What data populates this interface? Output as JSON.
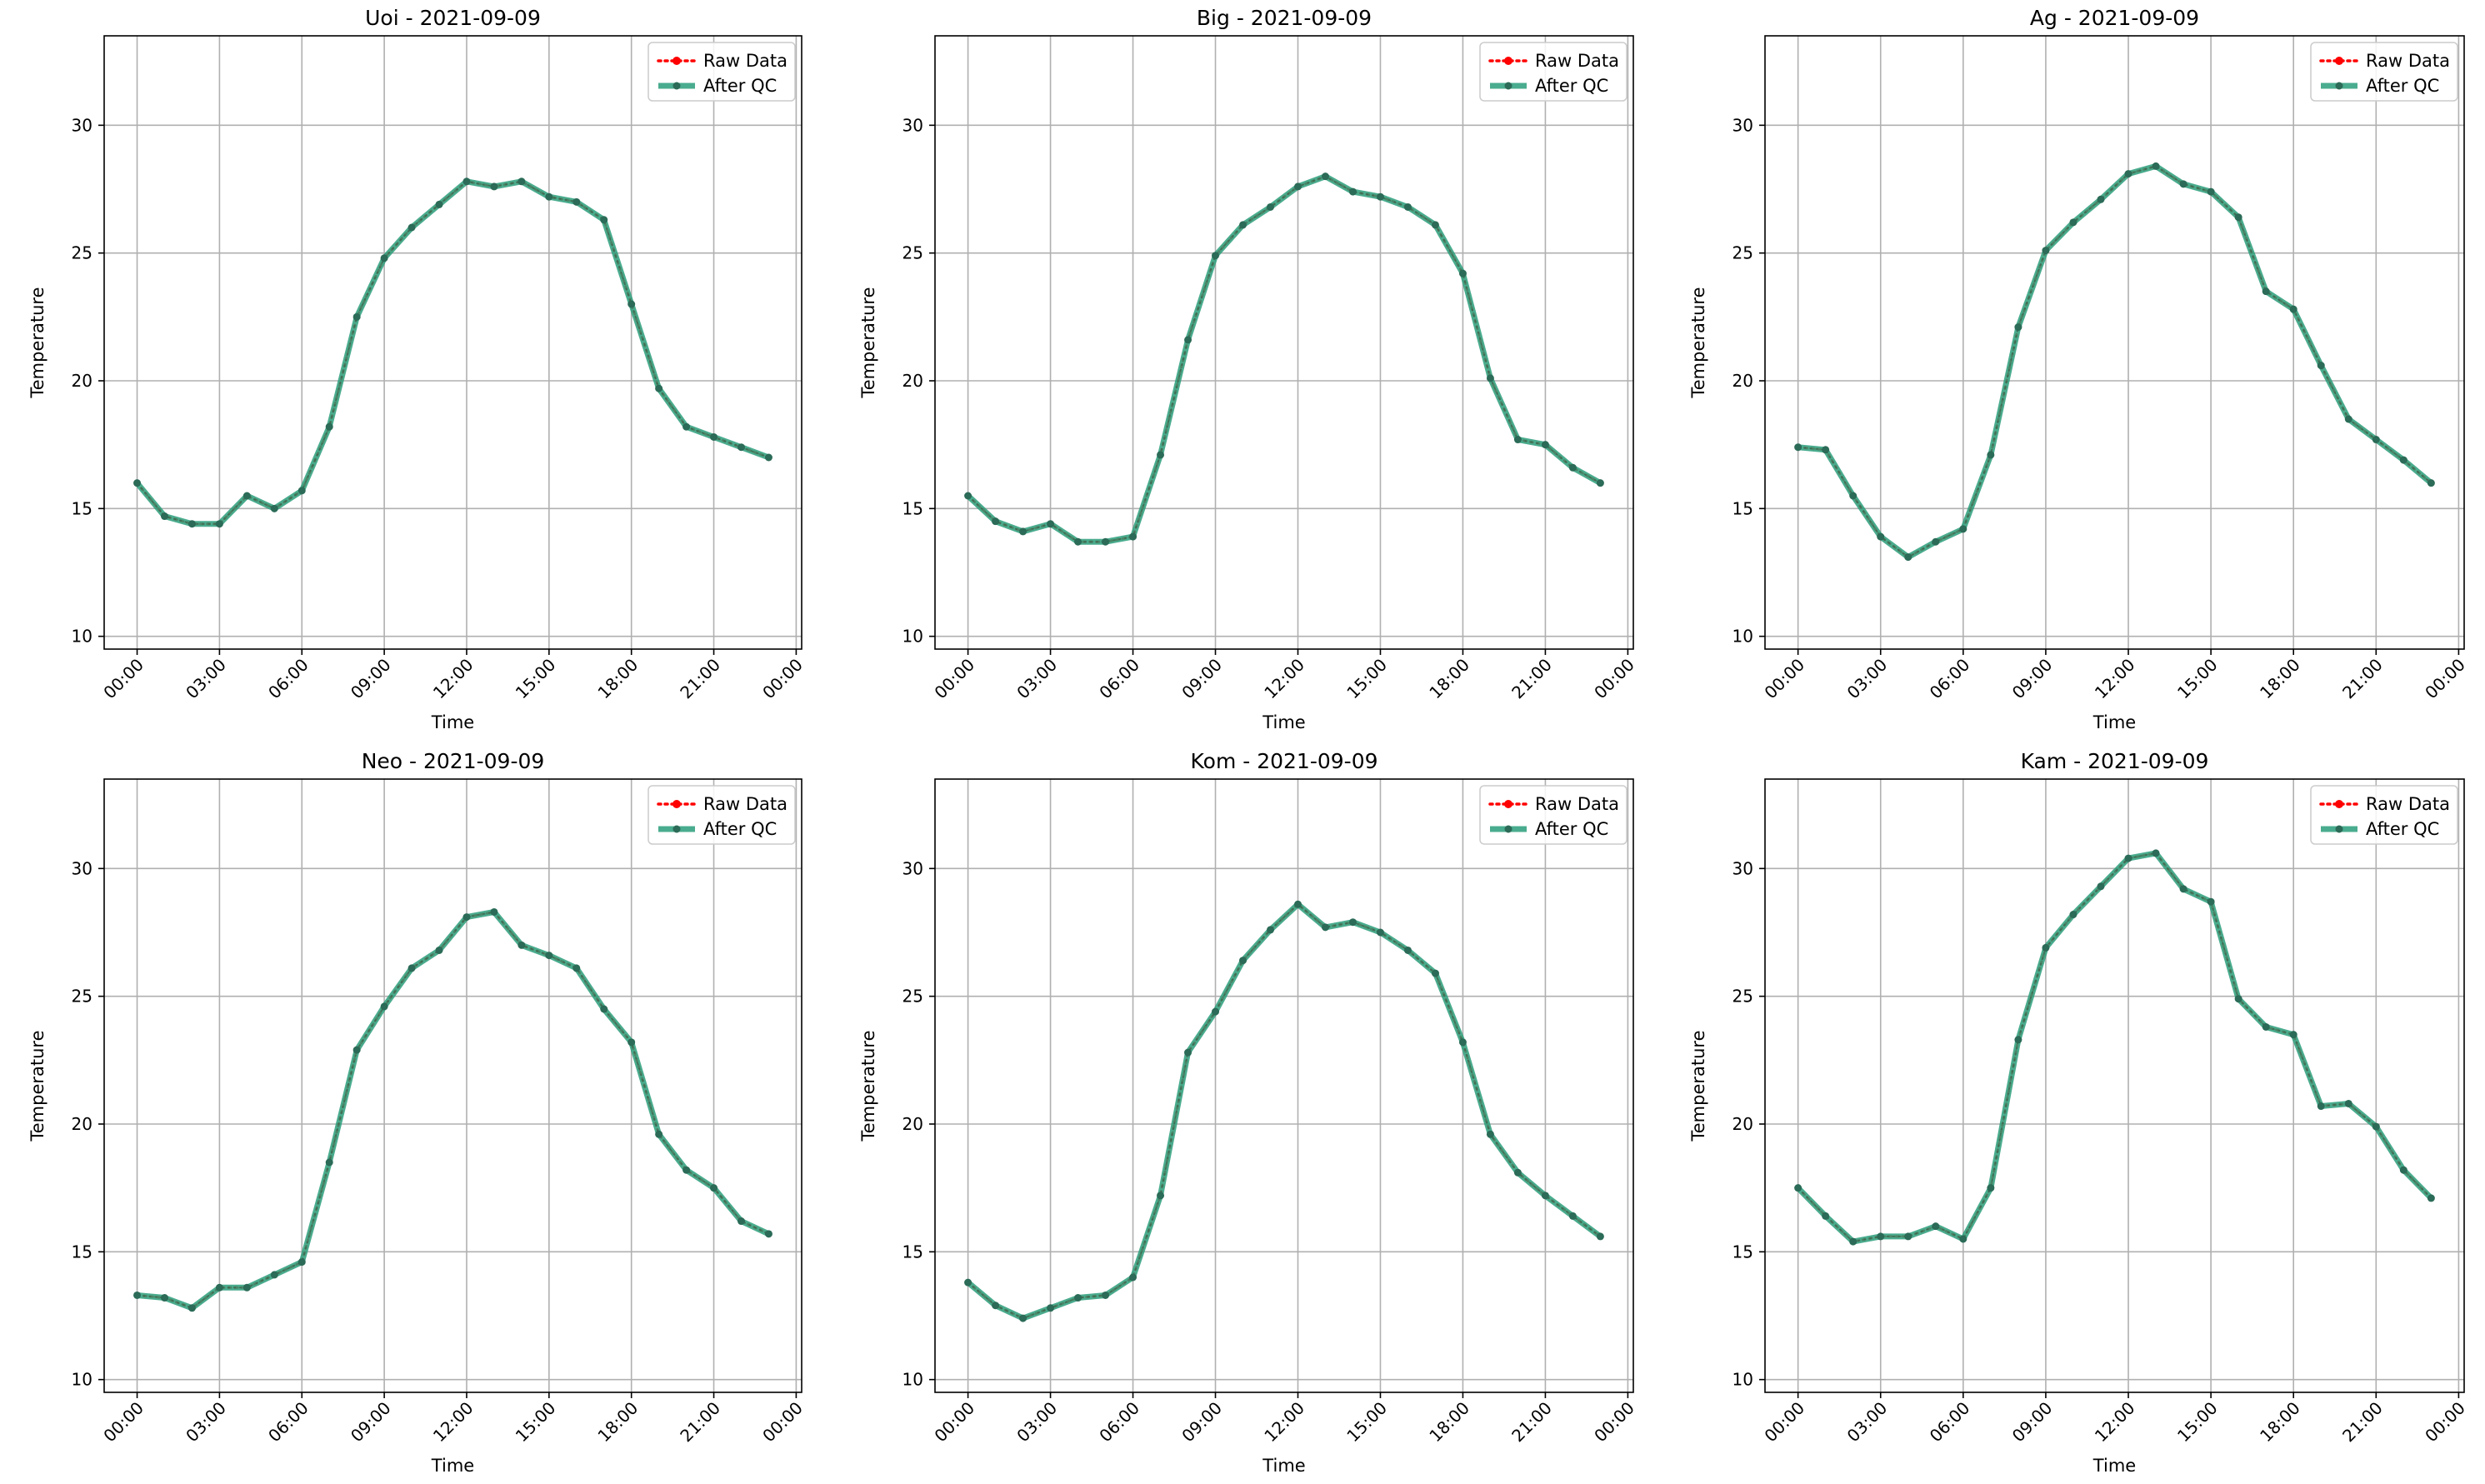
{
  "figure": {
    "background": "#ffffff",
    "grid": true,
    "legend_position": "top-right"
  },
  "legend": {
    "raw": {
      "label": "Raw Data",
      "color": "#ff0000",
      "style": "dotted line with circle markers"
    },
    "qc": {
      "label": "After QC",
      "color": "#2a9d7a",
      "style": "solid thick line with small markers"
    }
  },
  "chart_data": [
    {
      "type": "line",
      "title": "Uoi - 2021-09-09",
      "xlabel": "Time",
      "ylabel": "Temperature",
      "x_unit": "hour of day (2021-09-09)",
      "x_ticks": [
        "00:00",
        "03:00",
        "06:00",
        "09:00",
        "12:00",
        "15:00",
        "18:00",
        "21:00",
        "00:00"
      ],
      "y_ticks": [
        10,
        15,
        20,
        25,
        30
      ],
      "xlim": [
        -1.2,
        24.2
      ],
      "ylim": [
        9.5,
        33.5
      ],
      "x": [
        0,
        1,
        2,
        3,
        4,
        5,
        6,
        7,
        8,
        9,
        10,
        11,
        12,
        13,
        14,
        15,
        16,
        17,
        18,
        19,
        20,
        21,
        22,
        23
      ],
      "series": [
        {
          "name": "Raw Data",
          "values": [
            16.0,
            14.7,
            14.4,
            14.4,
            15.5,
            15.0,
            15.7,
            18.2,
            22.5,
            24.8,
            26.0,
            26.9,
            27.8,
            27.6,
            27.8,
            27.2,
            27.0,
            26.3,
            23.0,
            19.7,
            18.2,
            17.8,
            17.4,
            17.0
          ]
        },
        {
          "name": "After QC",
          "values": [
            16.0,
            14.7,
            14.4,
            14.4,
            15.5,
            15.0,
            15.7,
            18.2,
            22.5,
            24.8,
            26.0,
            26.9,
            27.8,
            27.6,
            27.8,
            27.2,
            27.0,
            26.3,
            23.0,
            19.7,
            18.2,
            17.8,
            17.4,
            17.0
          ]
        }
      ]
    },
    {
      "type": "line",
      "title": "Big - 2021-09-09",
      "xlabel": "Time",
      "ylabel": "Temperature",
      "x_unit": "hour of day (2021-09-09)",
      "x_ticks": [
        "00:00",
        "03:00",
        "06:00",
        "09:00",
        "12:00",
        "15:00",
        "18:00",
        "21:00",
        "00:00"
      ],
      "y_ticks": [
        10,
        15,
        20,
        25,
        30
      ],
      "xlim": [
        -1.2,
        24.2
      ],
      "ylim": [
        9.5,
        33.5
      ],
      "x": [
        0,
        1,
        2,
        3,
        4,
        5,
        6,
        7,
        8,
        9,
        10,
        11,
        12,
        13,
        14,
        15,
        16,
        17,
        18,
        19,
        20,
        21,
        22,
        23
      ],
      "series": [
        {
          "name": "Raw Data",
          "values": [
            15.5,
            14.5,
            14.1,
            14.4,
            13.7,
            13.7,
            13.9,
            17.1,
            21.6,
            24.9,
            26.1,
            26.8,
            27.6,
            28.0,
            27.4,
            27.2,
            26.8,
            26.1,
            24.2,
            20.1,
            17.7,
            17.5,
            16.6,
            16.0
          ]
        },
        {
          "name": "After QC",
          "values": [
            15.5,
            14.5,
            14.1,
            14.4,
            13.7,
            13.7,
            13.9,
            17.1,
            21.6,
            24.9,
            26.1,
            26.8,
            27.6,
            28.0,
            27.4,
            27.2,
            26.8,
            26.1,
            24.2,
            20.1,
            17.7,
            17.5,
            16.6,
            16.0
          ]
        }
      ]
    },
    {
      "type": "line",
      "title": "Ag - 2021-09-09",
      "xlabel": "Time",
      "ylabel": "Temperature",
      "x_unit": "hour of day (2021-09-09)",
      "x_ticks": [
        "00:00",
        "03:00",
        "06:00",
        "09:00",
        "12:00",
        "15:00",
        "18:00",
        "21:00",
        "00:00"
      ],
      "y_ticks": [
        10,
        15,
        20,
        25,
        30
      ],
      "xlim": [
        -1.2,
        24.2
      ],
      "ylim": [
        9.5,
        33.5
      ],
      "x": [
        0,
        1,
        2,
        3,
        4,
        5,
        6,
        7,
        8,
        9,
        10,
        11,
        12,
        13,
        14,
        15,
        16,
        17,
        18,
        19,
        20,
        21,
        22,
        23
      ],
      "series": [
        {
          "name": "Raw Data",
          "values": [
            17.4,
            17.3,
            15.5,
            13.9,
            13.1,
            13.7,
            14.2,
            17.1,
            22.1,
            25.1,
            26.2,
            27.1,
            28.1,
            28.4,
            27.7,
            27.4,
            26.4,
            23.5,
            22.8,
            20.6,
            18.5,
            17.7,
            16.9,
            16.0
          ]
        },
        {
          "name": "After QC",
          "values": [
            17.4,
            17.3,
            15.5,
            13.9,
            13.1,
            13.7,
            14.2,
            17.1,
            22.1,
            25.1,
            26.2,
            27.1,
            28.1,
            28.4,
            27.7,
            27.4,
            26.4,
            23.5,
            22.8,
            20.6,
            18.5,
            17.7,
            16.9,
            16.0
          ]
        }
      ]
    },
    {
      "type": "line",
      "title": "Neo - 2021-09-09",
      "xlabel": "Time",
      "ylabel": "Temperature",
      "x_unit": "hour of day (2021-09-09)",
      "x_ticks": [
        "00:00",
        "03:00",
        "06:00",
        "09:00",
        "12:00",
        "15:00",
        "18:00",
        "21:00",
        "00:00"
      ],
      "y_ticks": [
        10,
        15,
        20,
        25,
        30
      ],
      "xlim": [
        -1.2,
        24.2
      ],
      "ylim": [
        9.5,
        33.5
      ],
      "x": [
        0,
        1,
        2,
        3,
        4,
        5,
        6,
        7,
        8,
        9,
        10,
        11,
        12,
        13,
        14,
        15,
        16,
        17,
        18,
        19,
        20,
        21,
        22,
        23
      ],
      "series": [
        {
          "name": "Raw Data",
          "values": [
            13.3,
            13.2,
            12.8,
            13.6,
            13.6,
            14.1,
            14.6,
            18.5,
            22.9,
            24.6,
            26.1,
            26.8,
            28.1,
            28.3,
            27.0,
            26.6,
            26.1,
            24.5,
            23.2,
            19.6,
            18.2,
            17.5,
            16.2,
            15.7
          ]
        },
        {
          "name": "After QC",
          "values": [
            13.3,
            13.2,
            12.8,
            13.6,
            13.6,
            14.1,
            14.6,
            18.5,
            22.9,
            24.6,
            26.1,
            26.8,
            28.1,
            28.3,
            27.0,
            26.6,
            26.1,
            24.5,
            23.2,
            19.6,
            18.2,
            17.5,
            16.2,
            15.7
          ]
        }
      ]
    },
    {
      "type": "line",
      "title": "Kom - 2021-09-09",
      "xlabel": "Time",
      "ylabel": "Temperature",
      "x_unit": "hour of day (2021-09-09)",
      "x_ticks": [
        "00:00",
        "03:00",
        "06:00",
        "09:00",
        "12:00",
        "15:00",
        "18:00",
        "21:00",
        "00:00"
      ],
      "y_ticks": [
        10,
        15,
        20,
        25,
        30
      ],
      "xlim": [
        -1.2,
        24.2
      ],
      "ylim": [
        9.5,
        33.5
      ],
      "x": [
        0,
        1,
        2,
        3,
        4,
        5,
        6,
        7,
        8,
        9,
        10,
        11,
        12,
        13,
        14,
        15,
        16,
        17,
        18,
        19,
        20,
        21,
        22,
        23
      ],
      "series": [
        {
          "name": "Raw Data",
          "values": [
            13.8,
            12.9,
            12.4,
            12.8,
            13.2,
            13.3,
            14.0,
            17.2,
            22.8,
            24.4,
            26.4,
            27.6,
            28.6,
            27.7,
            27.9,
            27.5,
            26.8,
            25.9,
            23.2,
            19.6,
            18.1,
            17.2,
            16.4,
            15.6
          ]
        },
        {
          "name": "After QC",
          "values": [
            13.8,
            12.9,
            12.4,
            12.8,
            13.2,
            13.3,
            14.0,
            17.2,
            22.8,
            24.4,
            26.4,
            27.6,
            28.6,
            27.7,
            27.9,
            27.5,
            26.8,
            25.9,
            23.2,
            19.6,
            18.1,
            17.2,
            16.4,
            15.6
          ]
        }
      ]
    },
    {
      "type": "line",
      "title": "Kam - 2021-09-09",
      "xlabel": "Time",
      "ylabel": "Temperature",
      "x_unit": "hour of day (2021-09-09)",
      "x_ticks": [
        "00:00",
        "03:00",
        "06:00",
        "09:00",
        "12:00",
        "15:00",
        "18:00",
        "21:00",
        "00:00"
      ],
      "y_ticks": [
        10,
        15,
        20,
        25,
        30
      ],
      "xlim": [
        -1.2,
        24.2
      ],
      "ylim": [
        9.5,
        33.5
      ],
      "x": [
        0,
        1,
        2,
        3,
        4,
        5,
        6,
        7,
        8,
        9,
        10,
        11,
        12,
        13,
        14,
        15,
        16,
        17,
        18,
        19,
        20,
        21,
        22,
        23
      ],
      "series": [
        {
          "name": "Raw Data",
          "values": [
            17.5,
            16.4,
            15.4,
            15.6,
            15.6,
            16.0,
            15.5,
            17.5,
            23.3,
            26.9,
            28.2,
            29.3,
            30.4,
            30.6,
            29.2,
            28.7,
            24.9,
            23.8,
            23.5,
            20.7,
            20.8,
            19.9,
            18.2,
            17.1
          ]
        },
        {
          "name": "After QC",
          "values": [
            17.5,
            16.4,
            15.4,
            15.6,
            15.6,
            16.0,
            15.5,
            17.5,
            23.3,
            26.9,
            28.2,
            29.3,
            30.4,
            30.6,
            29.2,
            28.7,
            24.9,
            23.8,
            23.5,
            20.7,
            20.8,
            19.9,
            18.2,
            17.1
          ]
        }
      ]
    }
  ]
}
